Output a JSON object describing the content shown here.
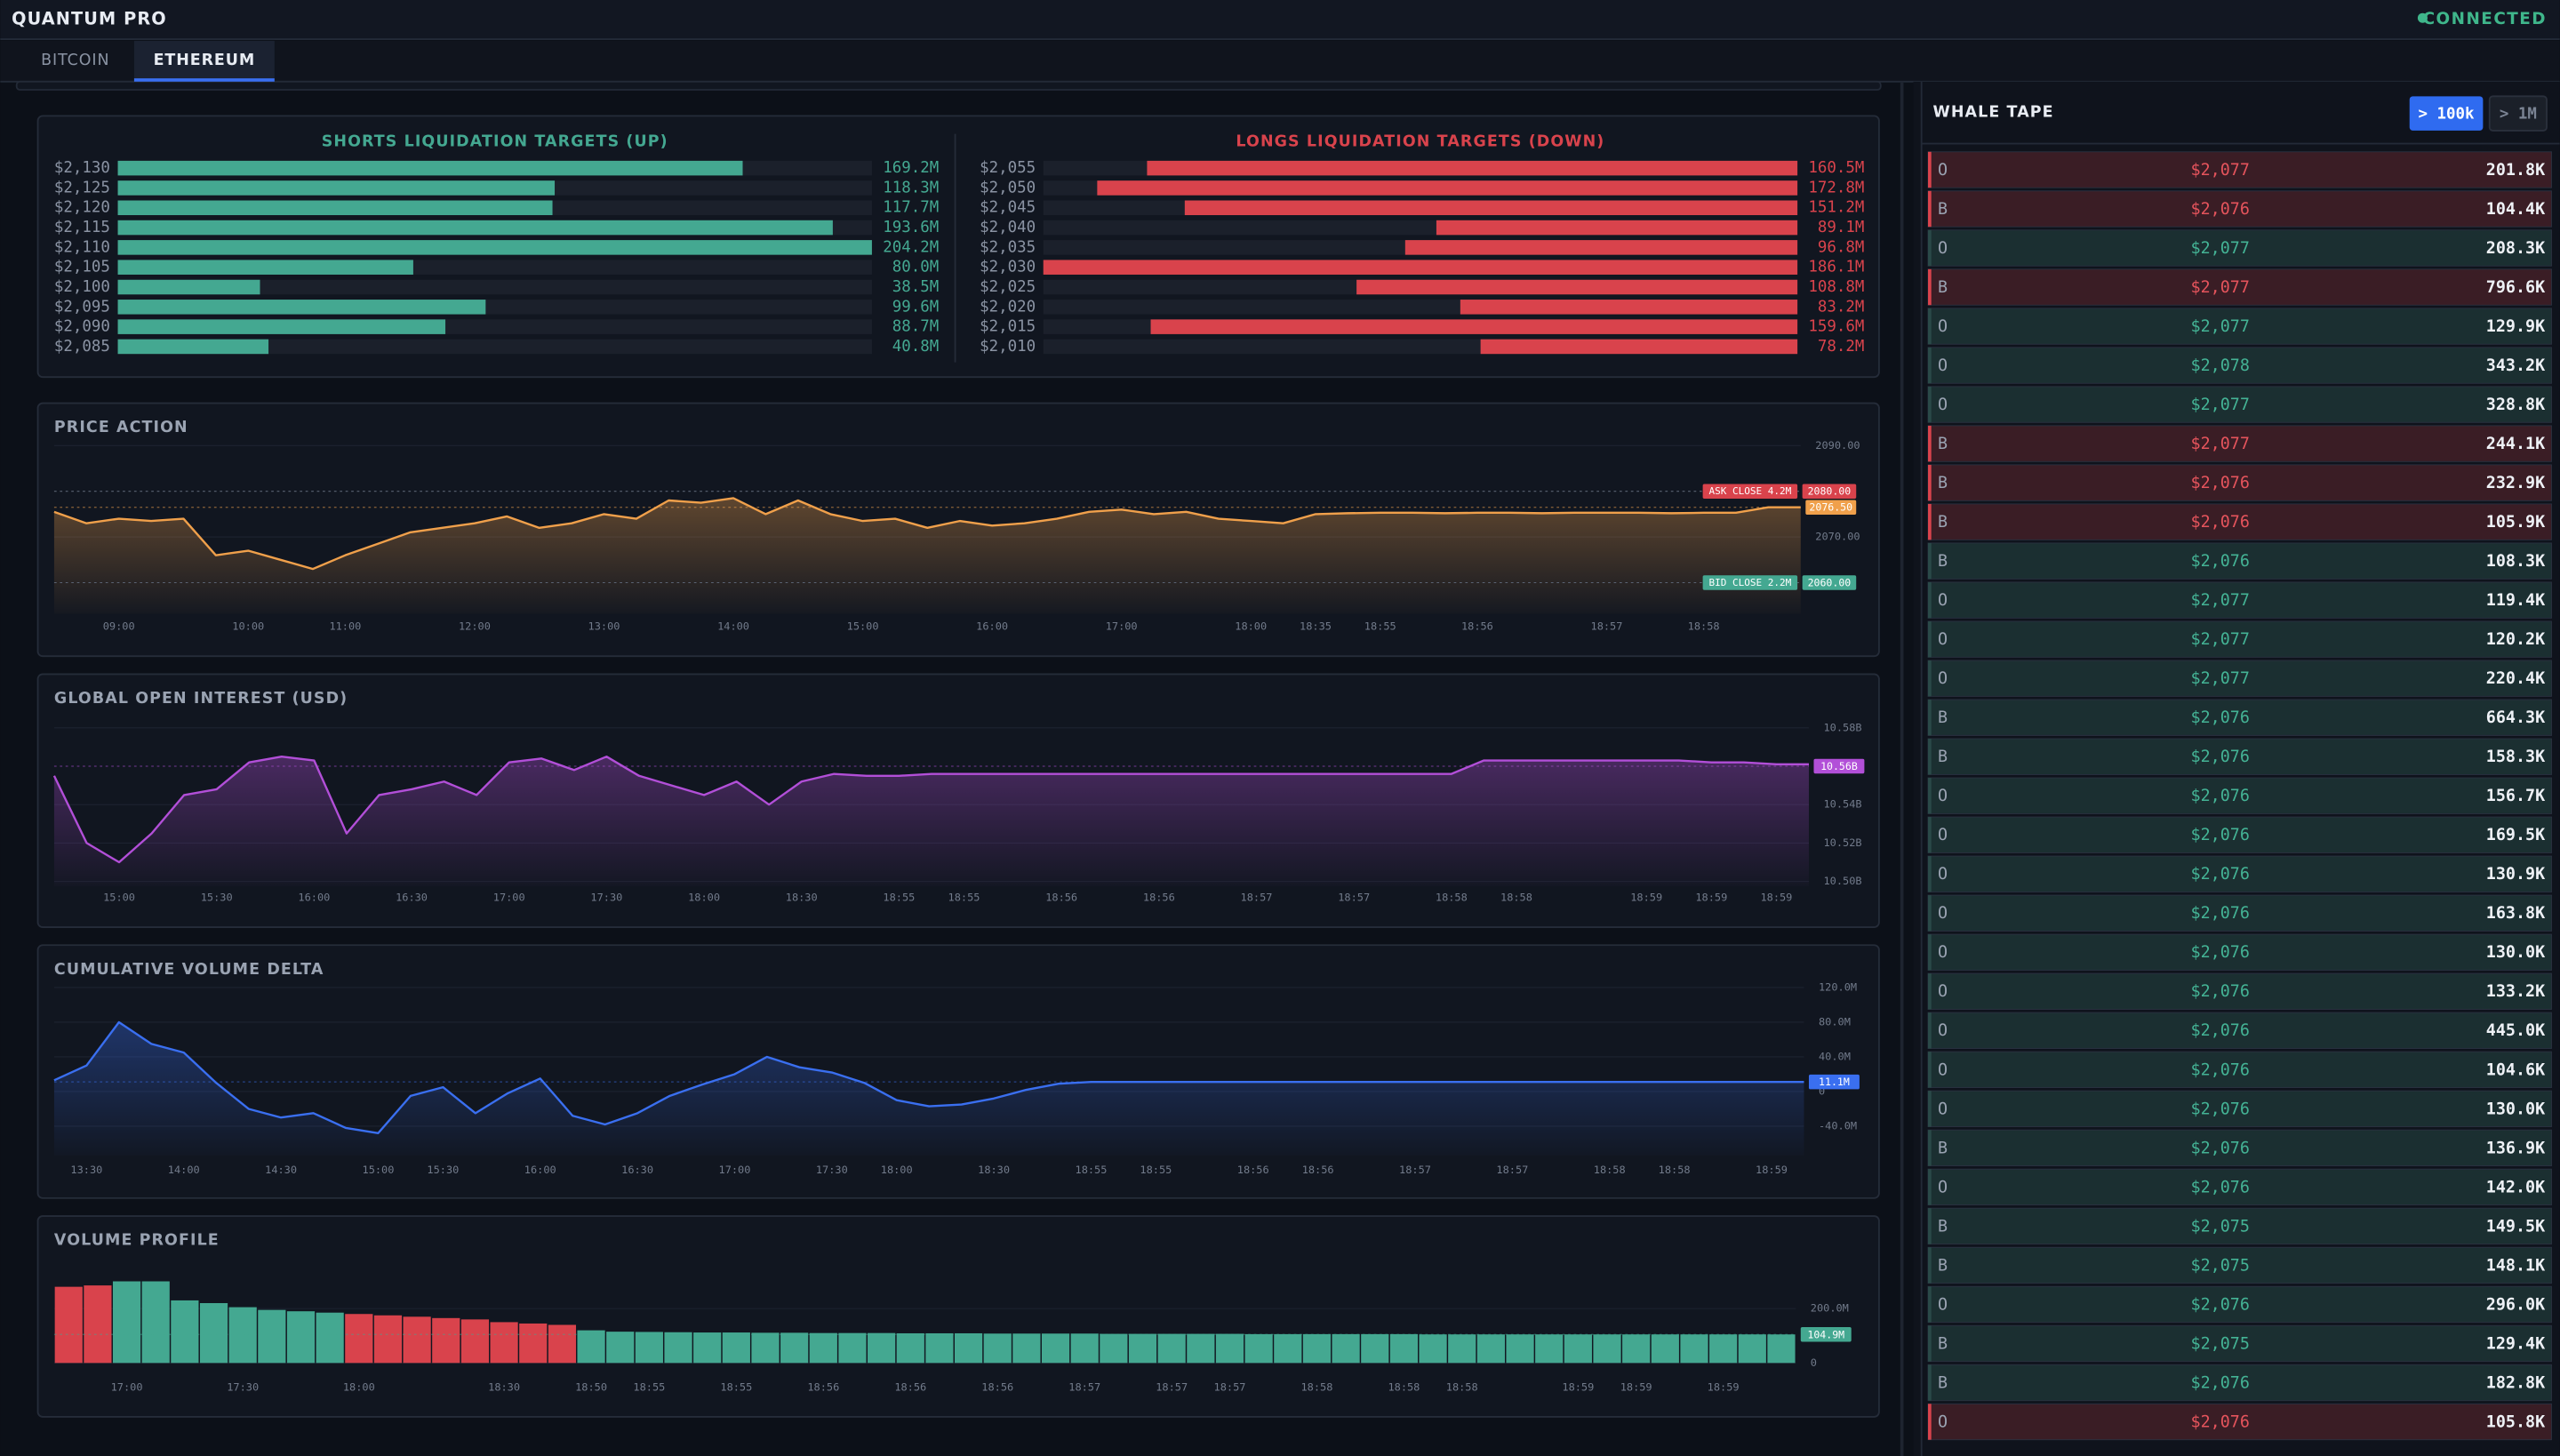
{
  "header": {
    "title": "QUANTUM PRO",
    "status": "CONNECTED"
  },
  "tabs": [
    "BITCOIN",
    "ETHEREUM"
  ],
  "active_tab": "ETHEREUM",
  "chart_data": [
    {
      "type": "bar",
      "orientation": "horizontal",
      "title": "SHORTS LIQUIDATION TARGETS (UP)",
      "color": "#44a891",
      "categories": [
        "$2,130",
        "$2,125",
        "$2,120",
        "$2,115",
        "$2,110",
        "$2,105",
        "$2,100",
        "$2,095",
        "$2,090",
        "$2,085"
      ],
      "values": [
        169.2,
        118.3,
        117.7,
        193.6,
        204.2,
        80.0,
        38.5,
        99.6,
        88.7,
        40.8
      ],
      "value_labels": [
        "169.2M",
        "118.3M",
        "117.7M",
        "193.6M",
        "204.2M",
        "80.0M",
        "38.5M",
        "99.6M",
        "88.7M",
        "40.8M"
      ]
    },
    {
      "type": "bar",
      "orientation": "horizontal",
      "title": "LONGS LIQUIDATION TARGETS (DOWN)",
      "color": "#d9434c",
      "categories": [
        "$2,055",
        "$2,050",
        "$2,045",
        "$2,040",
        "$2,035",
        "$2,030",
        "$2,025",
        "$2,020",
        "$2,015",
        "$2,010"
      ],
      "values": [
        160.5,
        172.8,
        151.2,
        89.1,
        96.8,
        186.1,
        108.8,
        83.2,
        159.6,
        78.2
      ],
      "value_labels": [
        "160.5M",
        "172.8M",
        "151.2M",
        "89.1M",
        "96.8M",
        "186.1M",
        "108.8M",
        "83.2M",
        "159.6M",
        "78.2M"
      ]
    },
    {
      "type": "line",
      "title": "PRICE ACTION",
      "color": "#f0a04b",
      "grid": true,
      "categories": [
        null,
        null,
        "09:00",
        null,
        null,
        null,
        "10:00",
        null,
        null,
        "11:00",
        null,
        null,
        null,
        "12:00",
        null,
        null,
        null,
        "13:00",
        null,
        null,
        null,
        "14:00",
        null,
        null,
        null,
        "15:00",
        null,
        null,
        null,
        "16:00",
        null,
        null,
        null,
        "17:00",
        null,
        null,
        null,
        "18:00",
        null,
        "18:35",
        null,
        "18:55",
        null,
        null,
        "18:56",
        null,
        null,
        null,
        "18:57",
        null,
        null,
        "18:58",
        null,
        null,
        null
      ],
      "values": [
        2075.5,
        2073,
        2074,
        2073.5,
        2074,
        2066,
        2067,
        2065,
        2063,
        2066,
        2068.5,
        2071,
        2072,
        2073,
        2074.5,
        2072,
        2073,
        2075,
        2074,
        2078,
        2077.5,
        2078.5,
        2075,
        2078,
        2075,
        2073.5,
        2074,
        2072,
        2073.5,
        2072.5,
        2073,
        2074,
        2075.5,
        2076,
        2075,
        2075.5,
        2074,
        2073.5,
        2073,
        2075,
        2075.2,
        2075.3,
        2075.3,
        2075.2,
        2075.3,
        2075.3,
        2075.2,
        2075.3,
        2075.3,
        2075.3,
        2075.2,
        2075.3,
        2075.3,
        2076.5,
        2076.5
      ],
      "ylim": [
        2053.2,
        2090
      ],
      "yticks": [
        {
          "value": 2090,
          "label": "2090.00"
        },
        {
          "value": 2070,
          "label": "2070.00"
        }
      ],
      "current": {
        "value": 2076.5,
        "label": "2076.50"
      },
      "markers": [
        {
          "label": "ASK CLOSE 4.2M",
          "value": 2080,
          "value_label": "2080.00",
          "color": "#d9434c"
        },
        {
          "label": "BID CLOSE 2.2M",
          "value": 2060,
          "value_label": "2060.00",
          "color": "#44a891"
        }
      ]
    },
    {
      "type": "line",
      "title": "GLOBAL OPEN INTEREST (USD)",
      "color": "#b24fd8",
      "grid": true,
      "categories": [
        null,
        null,
        "15:00",
        null,
        null,
        "15:30",
        null,
        null,
        "16:00",
        null,
        null,
        "16:30",
        null,
        null,
        "17:00",
        null,
        null,
        "17:30",
        null,
        null,
        "18:00",
        null,
        null,
        "18:30",
        null,
        null,
        "18:55",
        null,
        "18:55",
        null,
        null,
        "18:56",
        null,
        null,
        "18:56",
        null,
        null,
        "18:57",
        null,
        null,
        "18:57",
        null,
        null,
        "18:58",
        null,
        "18:58",
        null,
        null,
        null,
        "18:59",
        null,
        "18:59",
        null,
        "18:59",
        null
      ],
      "values": [
        10.555,
        10.52,
        10.51,
        10.525,
        10.545,
        10.548,
        10.562,
        10.565,
        10.563,
        10.525,
        10.545,
        10.548,
        10.552,
        10.545,
        10.562,
        10.564,
        10.558,
        10.565,
        10.555,
        10.55,
        10.545,
        10.552,
        10.54,
        10.552,
        10.556,
        10.555,
        10.555,
        10.556,
        10.556,
        10.556,
        10.556,
        10.556,
        10.556,
        10.556,
        10.556,
        10.556,
        10.556,
        10.556,
        10.556,
        10.556,
        10.556,
        10.556,
        10.556,
        10.556,
        10.563,
        10.563,
        10.563,
        10.563,
        10.563,
        10.563,
        10.563,
        10.562,
        10.562,
        10.561,
        10.561
      ],
      "ylim": [
        10.5,
        10.585
      ],
      "yticks": [
        {
          "value": 10.58,
          "label": "10.58B"
        },
        {
          "value": 10.54,
          "label": "10.54B"
        },
        {
          "value": 10.52,
          "label": "10.52B"
        },
        {
          "value": 10.5,
          "label": "10.50B"
        }
      ],
      "current": {
        "value": 10.56,
        "label": "10.56B"
      }
    },
    {
      "type": "line",
      "title": "CUMULATIVE VOLUME DELTA",
      "color": "#3a6ff0",
      "grid": true,
      "categories": [
        null,
        "13:30",
        null,
        null,
        "14:00",
        null,
        null,
        "14:30",
        null,
        null,
        "15:00",
        null,
        "15:30",
        null,
        null,
        "16:00",
        null,
        null,
        "16:30",
        null,
        null,
        "17:00",
        null,
        null,
        "17:30",
        null,
        "18:00",
        null,
        null,
        "18:30",
        null,
        null,
        "18:55",
        null,
        "18:55",
        null,
        null,
        "18:56",
        null,
        "18:56",
        null,
        null,
        "18:57",
        null,
        null,
        "18:57",
        null,
        null,
        "18:58",
        null,
        "18:58",
        null,
        null,
        "18:59",
        null
      ],
      "values": [
        13,
        30,
        80,
        55,
        45,
        10,
        -20,
        -30,
        -25,
        -42,
        -48,
        -5,
        5,
        -25,
        -2,
        15,
        -28,
        -38,
        -25,
        -5,
        8,
        20,
        40,
        28,
        22,
        10,
        -10,
        -17,
        -15,
        -8,
        2,
        9,
        11,
        11,
        11,
        11,
        11,
        11,
        11,
        11,
        11,
        11,
        11,
        11,
        11,
        11,
        11,
        11,
        11,
        11,
        11,
        11,
        11,
        11,
        11.1
      ],
      "ylim": [
        -74,
        120
      ],
      "yticks": [
        {
          "value": 120,
          "label": "120.0M"
        },
        {
          "value": 80,
          "label": "80.0M"
        },
        {
          "value": 40,
          "label": "40.0M"
        },
        0,
        {
          "value": -40,
          "label": "-40.0M"
        }
      ],
      "current": {
        "value": 11.1,
        "label": "11.1M"
      }
    },
    {
      "type": "bar",
      "orientation": "vertical",
      "title": "VOLUME PROFILE",
      "color": "#44a891",
      "grid": true,
      "categories": [
        null,
        null,
        "17:00",
        null,
        null,
        null,
        "17:30",
        null,
        null,
        null,
        "18:00",
        null,
        null,
        null,
        null,
        "18:30",
        null,
        null,
        "18:50",
        null,
        "18:55",
        null,
        null,
        "18:55",
        null,
        null,
        "18:56",
        null,
        null,
        "18:56",
        null,
        null,
        "18:56",
        null,
        null,
        "18:57",
        null,
        null,
        "18:57",
        null,
        "18:57",
        null,
        null,
        "18:58",
        null,
        null,
        "18:58",
        null,
        "18:58",
        null,
        null,
        null,
        "18:59",
        null,
        "18:59",
        null,
        null,
        "18:59",
        null,
        null
      ],
      "values": [
        280,
        285,
        300,
        300,
        230,
        220,
        205,
        195,
        190,
        185,
        180,
        175,
        170,
        165,
        160,
        150,
        145,
        140,
        120,
        115,
        114,
        113,
        112,
        112,
        111,
        111,
        110,
        110,
        110,
        109,
        109,
        109,
        108,
        108,
        108,
        108,
        107,
        107,
        107,
        107,
        107,
        106,
        106,
        106,
        106,
        106,
        106,
        105,
        105,
        105,
        105,
        105,
        105,
        105,
        105,
        105,
        105,
        105,
        105,
        104.9
      ],
      "colors": [
        "#d9434c",
        "#d9434c",
        "#44a891",
        "#44a891",
        "#44a891",
        "#44a891",
        "#44a891",
        "#44a891",
        "#44a891",
        "#44a891",
        "#d9434c",
        "#d9434c",
        "#d9434c",
        "#d9434c",
        "#d9434c",
        "#d9434c",
        "#d9434c",
        "#d9434c",
        "#44a891",
        "#44a891",
        "#44a891",
        "#44a891",
        "#44a891",
        "#44a891",
        "#44a891",
        "#44a891",
        "#44a891",
        "#44a891",
        "#44a891",
        "#44a891",
        "#44a891",
        "#44a891",
        "#44a891",
        "#44a891",
        "#44a891",
        "#44a891",
        "#44a891",
        "#44a891",
        "#44a891",
        "#44a891",
        "#44a891",
        "#44a891",
        "#44a891",
        "#44a891",
        "#44a891",
        "#44a891",
        "#44a891",
        "#44a891",
        "#44a891",
        "#44a891",
        "#44a891",
        "#44a891",
        "#44a891",
        "#44a891",
        "#44a891",
        "#44a891",
        "#44a891",
        "#44a891",
        "#44a891",
        "#44a891"
      ],
      "ylim": [
        0,
        330
      ],
      "yticks": [
        {
          "value": 200,
          "label": "200.0M"
        },
        0
      ],
      "current": {
        "value": 104.9,
        "label": "104.9M"
      }
    }
  ],
  "whale_tape": {
    "title": "WHALE TAPE",
    "filters": [
      "> 100k",
      "> 1M"
    ],
    "active_filter": "> 100k",
    "rows": [
      {
        "side": "O",
        "price": "$2,077",
        "size": "201.8K",
        "color": "red"
      },
      {
        "side": "B",
        "price": "$2,076",
        "size": "104.4K",
        "color": "red"
      },
      {
        "side": "O",
        "price": "$2,077",
        "size": "208.3K",
        "color": "green"
      },
      {
        "side": "B",
        "price": "$2,077",
        "size": "796.6K",
        "color": "red"
      },
      {
        "side": "O",
        "price": "$2,077",
        "size": "129.9K",
        "color": "green"
      },
      {
        "side": "O",
        "price": "$2,078",
        "size": "343.2K",
        "color": "green"
      },
      {
        "side": "O",
        "price": "$2,077",
        "size": "328.8K",
        "color": "green"
      },
      {
        "side": "B",
        "price": "$2,077",
        "size": "244.1K",
        "color": "red"
      },
      {
        "side": "B",
        "price": "$2,076",
        "size": "232.9K",
        "color": "red"
      },
      {
        "side": "B",
        "price": "$2,076",
        "size": "105.9K",
        "color": "red"
      },
      {
        "side": "B",
        "price": "$2,076",
        "size": "108.3K",
        "color": "green"
      },
      {
        "side": "O",
        "price": "$2,077",
        "size": "119.4K",
        "color": "green"
      },
      {
        "side": "O",
        "price": "$2,077",
        "size": "120.2K",
        "color": "green"
      },
      {
        "side": "O",
        "price": "$2,077",
        "size": "220.4K",
        "color": "green"
      },
      {
        "side": "B",
        "price": "$2,076",
        "size": "664.3K",
        "color": "green"
      },
      {
        "side": "B",
        "price": "$2,076",
        "size": "158.3K",
        "color": "green"
      },
      {
        "side": "O",
        "price": "$2,076",
        "size": "156.7K",
        "color": "green"
      },
      {
        "side": "O",
        "price": "$2,076",
        "size": "169.5K",
        "color": "green"
      },
      {
        "side": "O",
        "price": "$2,076",
        "size": "130.9K",
        "color": "green"
      },
      {
        "side": "O",
        "price": "$2,076",
        "size": "163.8K",
        "color": "green"
      },
      {
        "side": "O",
        "price": "$2,076",
        "size": "130.0K",
        "color": "green"
      },
      {
        "side": "O",
        "price": "$2,076",
        "size": "133.2K",
        "color": "green"
      },
      {
        "side": "O",
        "price": "$2,076",
        "size": "445.0K",
        "color": "green"
      },
      {
        "side": "O",
        "price": "$2,076",
        "size": "104.6K",
        "color": "green"
      },
      {
        "side": "O",
        "price": "$2,076",
        "size": "130.0K",
        "color": "green"
      },
      {
        "side": "B",
        "price": "$2,076",
        "size": "136.9K",
        "color": "green"
      },
      {
        "side": "O",
        "price": "$2,076",
        "size": "142.0K",
        "color": "green"
      },
      {
        "side": "B",
        "price": "$2,075",
        "size": "149.5K",
        "color": "green"
      },
      {
        "side": "B",
        "price": "$2,075",
        "size": "148.1K",
        "color": "green"
      },
      {
        "side": "O",
        "price": "$2,076",
        "size": "296.0K",
        "color": "green"
      },
      {
        "side": "B",
        "price": "$2,075",
        "size": "129.4K",
        "color": "green"
      },
      {
        "side": "B",
        "price": "$2,076",
        "size": "182.8K",
        "color": "green"
      },
      {
        "side": "O",
        "price": "$2,076",
        "size": "105.8K",
        "color": "red"
      }
    ]
  }
}
